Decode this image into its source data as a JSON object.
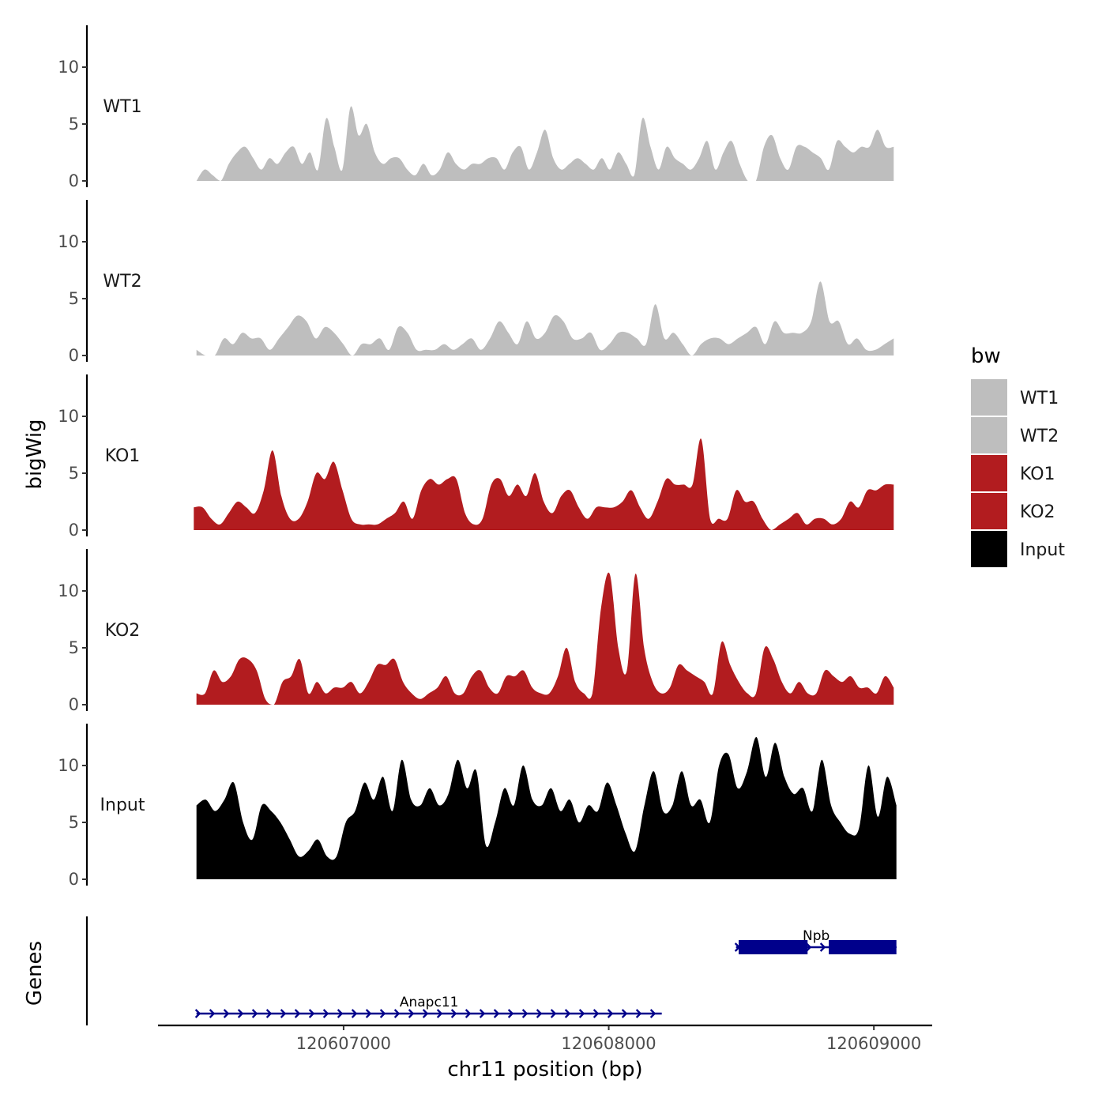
{
  "chart_data": {
    "type": "area",
    "title": "",
    "xlabel": "chr11 position (bp)",
    "ylabel": "bigWig",
    "genes_ylabel": "Genes",
    "xlim": [
      120606300,
      120609220
    ],
    "x_ticks": [
      120607000,
      120608000,
      120609000
    ],
    "x_tick_labels": [
      "120607000",
      "120608000",
      "120609000"
    ],
    "ylim": [
      0,
      14
    ],
    "y_ticks": [
      0,
      5,
      10
    ],
    "y_tick_labels": [
      "0",
      "5",
      "10"
    ],
    "legend": {
      "title": "bw",
      "position": "right",
      "entries": [
        {
          "label": "WT1",
          "color": "#bebebe"
        },
        {
          "label": "WT2",
          "color": "#bebebe"
        },
        {
          "label": "KO1",
          "color": "#b21c1f"
        },
        {
          "label": "KO2",
          "color": "#b21c1f"
        },
        {
          "label": "Input",
          "color": "#000000"
        }
      ]
    },
    "series": [
      {
        "name": "WT1",
        "color": "#bebebe",
        "x_start": 120606445,
        "x_end": 120609075,
        "values": [
          0,
          1,
          0.5,
          0,
          1.5,
          2.5,
          3,
          2,
          1,
          2,
          1.5,
          2.5,
          3,
          1.5,
          2.5,
          1,
          5.5,
          3,
          1,
          6.5,
          4,
          5,
          2.5,
          1.5,
          2,
          2,
          1,
          0.5,
          1.5,
          0.5,
          1,
          2.5,
          1.5,
          1,
          1.5,
          1.5,
          2,
          2,
          1,
          2.5,
          3,
          1,
          2.5,
          4.5,
          2,
          1,
          1.5,
          2,
          1.5,
          1,
          2,
          1,
          2.5,
          1.5,
          0.5,
          5.5,
          3,
          1,
          3,
          2,
          1.5,
          1,
          2,
          3.5,
          1,
          2.5,
          3.5,
          1.5,
          0,
          0,
          3,
          4,
          2,
          1,
          3,
          3,
          2.5,
          2,
          1,
          3.5,
          3,
          2.5,
          3,
          3,
          4.5,
          3,
          3
        ]
      },
      {
        "name": "WT2",
        "color": "#bebebe",
        "x_start": 120606445,
        "x_end": 120609075,
        "values": [
          0.5,
          0,
          0,
          1.5,
          1,
          2,
          1.5,
          1.5,
          0.5,
          1.5,
          2.5,
          3.5,
          3,
          1.5,
          2.5,
          2,
          1,
          0,
          1,
          1,
          1.5,
          0.5,
          2.5,
          2,
          0.5,
          0.5,
          0.5,
          1,
          0.5,
          1,
          1.5,
          0.5,
          1.5,
          3,
          2,
          1,
          3,
          1.5,
          2,
          3.5,
          3,
          1.5,
          1.5,
          2,
          0.5,
          1,
          2,
          2,
          1.5,
          1,
          4.5,
          1.5,
          2,
          1,
          0,
          1,
          1.5,
          1.5,
          1,
          1.5,
          2,
          2.5,
          1,
          3,
          2,
          2,
          2,
          3,
          6.5,
          3,
          3,
          1,
          1.5,
          0.5,
          0.5,
          1,
          1.5
        ]
      },
      {
        "name": "KO1",
        "color": "#b21c1f",
        "x_start": 120606435,
        "x_end": 120609075,
        "values": [
          2,
          2,
          1,
          0.5,
          1.5,
          2.5,
          2,
          1.5,
          3.5,
          7,
          3,
          1,
          1,
          2.5,
          5,
          4.5,
          6,
          3.5,
          1,
          0.5,
          0.5,
          0.5,
          1,
          1.5,
          2.5,
          1,
          3.5,
          4.5,
          4,
          4.5,
          4.5,
          1.5,
          0.5,
          1,
          4,
          4.5,
          3,
          4,
          3,
          5,
          2.5,
          1.5,
          3,
          3.5,
          2,
          1,
          2,
          2,
          2,
          2.5,
          3.5,
          2,
          1,
          2.5,
          4.5,
          4,
          4,
          4,
          8,
          1,
          1,
          1,
          3.5,
          2.5,
          2.5,
          1,
          0,
          0.5,
          1,
          1.5,
          0.5,
          1,
          1,
          0.5,
          1,
          2.5,
          2,
          3.5,
          3.5,
          4,
          4
        ]
      },
      {
        "name": "KO2",
        "color": "#b21c1f",
        "x_start": 120606445,
        "x_end": 120609075,
        "values": [
          1,
          1,
          3,
          2,
          2.5,
          4,
          4,
          3,
          0.5,
          0,
          2,
          2.5,
          4,
          1,
          2,
          1,
          1.5,
          1.5,
          2,
          1,
          2,
          3.5,
          3.5,
          4,
          2,
          1,
          0.5,
          1,
          1.5,
          2.5,
          1,
          1,
          2.5,
          3,
          1.5,
          1,
          2.5,
          2.5,
          3,
          1.5,
          1,
          1,
          2.5,
          5,
          2,
          1,
          1,
          8.5,
          11.5,
          5,
          3,
          11.5,
          5,
          2,
          1,
          1.5,
          3.5,
          3,
          2.5,
          2,
          1,
          5.5,
          3.5,
          2,
          1,
          1,
          5,
          4,
          2,
          1,
          2,
          1,
          1,
          3,
          2.5,
          2,
          2.5,
          1.5,
          1.5,
          1,
          2.5,
          1.5
        ]
      },
      {
        "name": "Input",
        "color": "#000000",
        "x_start": 120606445,
        "x_end": 120609085,
        "values": [
          6.5,
          7,
          6,
          7,
          8.5,
          5,
          3.5,
          6.5,
          6,
          5,
          3.5,
          2,
          2.5,
          3.5,
          2,
          2,
          5,
          6,
          8.5,
          7,
          9,
          6,
          10.5,
          7,
          6.5,
          8,
          6.5,
          7.5,
          10.5,
          8,
          9.5,
          3,
          5,
          8,
          6.5,
          10,
          7,
          6.5,
          8,
          6,
          7,
          5,
          6.5,
          6,
          8.5,
          6.5,
          4,
          2.5,
          6.5,
          9.5,
          6,
          6.5,
          9.5,
          6.5,
          7,
          5,
          10,
          11,
          8,
          9.5,
          12.5,
          9,
          12,
          9,
          7.5,
          8,
          6,
          10.5,
          6.5,
          5,
          4,
          4.5,
          10,
          5.5,
          9,
          6.5
        ]
      }
    ],
    "genes": [
      {
        "name": "Anapc11",
        "strand": "+",
        "start": 120606445,
        "end": 120608200
      },
      {
        "name": "Npb",
        "strand": "+",
        "start": 120608480,
        "end": 120609085,
        "exons": [
          [
            120608490,
            120608750
          ],
          [
            120608830,
            120609085
          ]
        ]
      }
    ]
  }
}
